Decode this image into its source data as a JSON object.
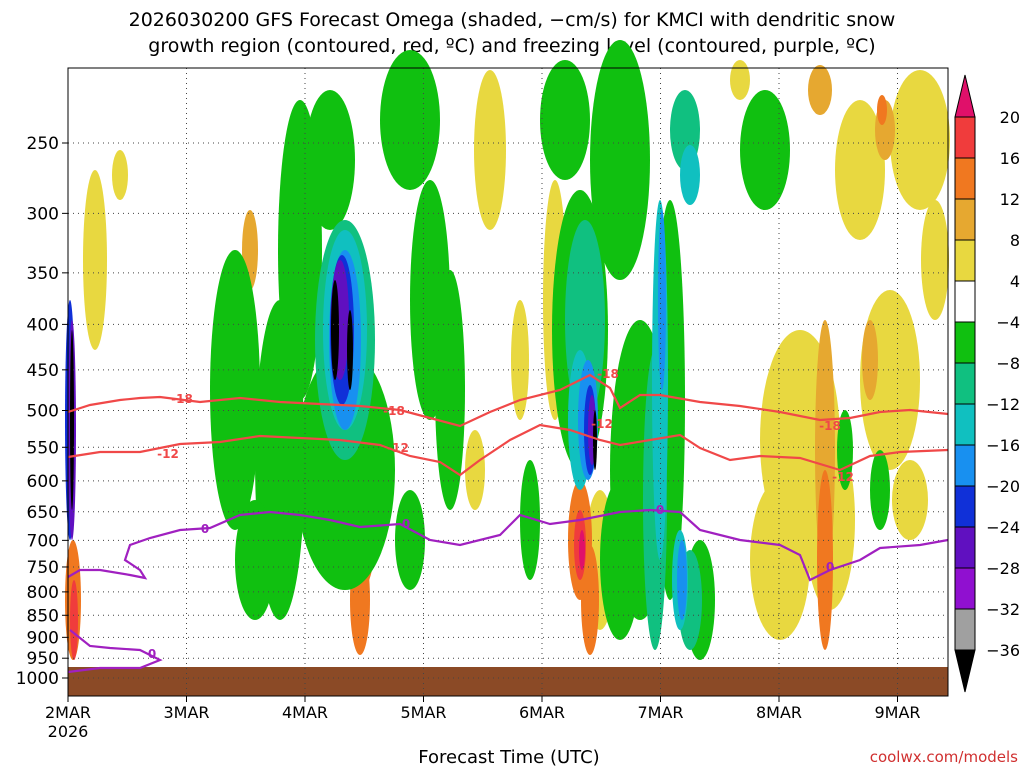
{
  "title_line1": "2026030200 GFS Forecast Omega (shaded, −cm/s) for KMCI with dendritic snow",
  "title_line2": "growth region (contoured, red, ºC) and freezing level (contoured, purple, ºC)",
  "xlabel": "Forecast Time (UTC)",
  "credit": "coolwx.com/models",
  "colors": {
    "ground": "#8b4a26",
    "dgz_contour": "#f04848",
    "freezing_contour": "#a020c0",
    "grid": "#444444"
  },
  "chart_data": {
    "type": "heatmap",
    "y_scale": "log-pressure",
    "y_ticks": [
      "250",
      "300",
      "350",
      "400",
      "450",
      "500",
      "550",
      "600",
      "650",
      "700",
      "750",
      "800",
      "850",
      "900",
      "950",
      "1000"
    ],
    "y_tick_values": [
      250,
      300,
      350,
      400,
      450,
      500,
      550,
      600,
      650,
      700,
      750,
      800,
      850,
      900,
      950,
      1000
    ],
    "x_ticks": [
      "2MAR",
      "3MAR",
      "4MAR",
      "5MAR",
      "6MAR",
      "7MAR",
      "8MAR",
      "9MAR"
    ],
    "x_tick_sub": "2026",
    "colorbar": {
      "labels": [
        "20",
        "16",
        "12",
        "8",
        "4",
        "−4",
        "−8",
        "−12",
        "−16",
        "−20",
        "−24",
        "−28",
        "−32",
        "−36"
      ],
      "colors": [
        "#e0106a",
        "#f03c3c",
        "#f07820",
        "#e6a830",
        "#e8d840",
        "#ffffff",
        "#10c010",
        "#10c080",
        "#10c0c0",
        "#1890f0",
        "#1030d8",
        "#6010c0",
        "#9010d0",
        "#a0a0a0",
        "#000000"
      ]
    },
    "contour_labels": {
      "dgz": [
        "-18",
        "-12"
      ],
      "freezing": [
        "0"
      ]
    }
  }
}
